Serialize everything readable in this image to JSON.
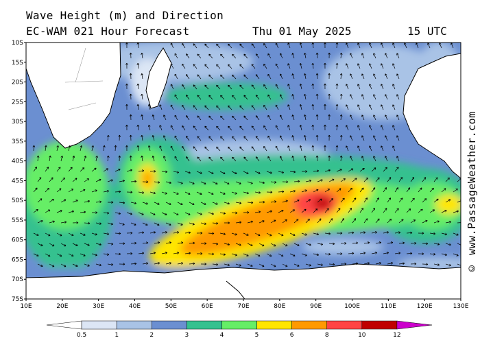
{
  "header": {
    "title": "Wave Height (m) and Direction",
    "model": "EC-WAM 021 Hour Forecast",
    "date": "Thu 01 May 2025",
    "time": "15 UTC"
  },
  "side_text": "© www.PassageWeather.com",
  "map": {
    "lon_range": [
      10,
      130
    ],
    "lat_range": [
      -75,
      -10
    ],
    "lat_ticks": [
      "10S",
      "15S",
      "20S",
      "25S",
      "30S",
      "35S",
      "40S",
      "45S",
      "50S",
      "55S",
      "60S",
      "65S",
      "70S",
      "75S"
    ],
    "lon_ticks": [
      "10E",
      "20E",
      "30E",
      "40E",
      "50E",
      "60E",
      "70E",
      "80E",
      "90E",
      "100E",
      "110E",
      "120E",
      "130E"
    ]
  },
  "legend": {
    "labels": [
      "0.5",
      "1",
      "2",
      "3",
      "4",
      "5",
      "6",
      "8",
      "10",
      "12"
    ],
    "colors": [
      "#ffffff",
      "#dce6f5",
      "#a9c3e6",
      "#6b8fd1",
      "#35c18f",
      "#66ee66",
      "#ffe600",
      "#ff9900",
      "#ff4444",
      "#c00000",
      "#cc00cc"
    ]
  }
}
